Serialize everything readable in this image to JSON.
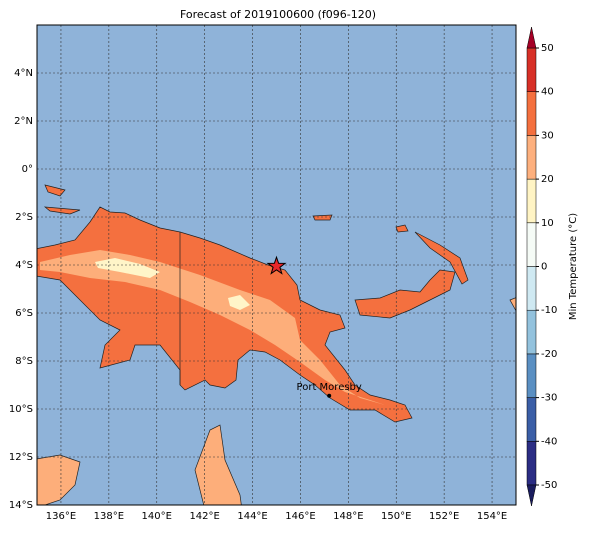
{
  "chart_data": {
    "type": "map",
    "title": "Forecast of 2019100600 (f096-120)",
    "xlim": [
      135,
      155
    ],
    "ylim": [
      -14,
      6
    ],
    "xticks": [
      {
        "value": 136,
        "label": "136°E"
      },
      {
        "value": 138,
        "label": "138°E"
      },
      {
        "value": 140,
        "label": "140°E"
      },
      {
        "value": 142,
        "label": "142°E"
      },
      {
        "value": 144,
        "label": "144°E"
      },
      {
        "value": 146,
        "label": "146°E"
      },
      {
        "value": 148,
        "label": "148°E"
      },
      {
        "value": 150,
        "label": "150°E"
      },
      {
        "value": 152,
        "label": "152°E"
      },
      {
        "value": 154,
        "label": "154°E"
      }
    ],
    "yticks": [
      {
        "value": 4,
        "label": "4°N"
      },
      {
        "value": 2,
        "label": "2°N"
      },
      {
        "value": 0,
        "label": "0°"
      },
      {
        "value": -2,
        "label": "2°S"
      },
      {
        "value": -4,
        "label": "4°S"
      },
      {
        "value": -6,
        "label": "6°S"
      },
      {
        "value": -8,
        "label": "8°S"
      },
      {
        "value": -10,
        "label": "10°S"
      },
      {
        "value": -12,
        "label": "12°S"
      },
      {
        "value": -14,
        "label": "14°S"
      }
    ],
    "grid": true,
    "colorbar": {
      "label": "Min Temperature (°C)",
      "ticks": [
        -50,
        -40,
        -30,
        -20,
        -10,
        0,
        10,
        20,
        30,
        40,
        50
      ],
      "colors": [
        "#2b2d84",
        "#3a5ea6",
        "#5a8fc2",
        "#93c2dd",
        "#cfe9f2",
        "#f5fbf6",
        "#fff4c4",
        "#fdb07e",
        "#f4703f",
        "#d73027"
      ],
      "under_color": "#1a1c5e",
      "over_color": "#a50026"
    },
    "annotation": {
      "label": "Port Moresby",
      "lon": 147.2,
      "lat": -9.45
    },
    "marker": {
      "lon": 145,
      "lat": -4.05
    }
  }
}
